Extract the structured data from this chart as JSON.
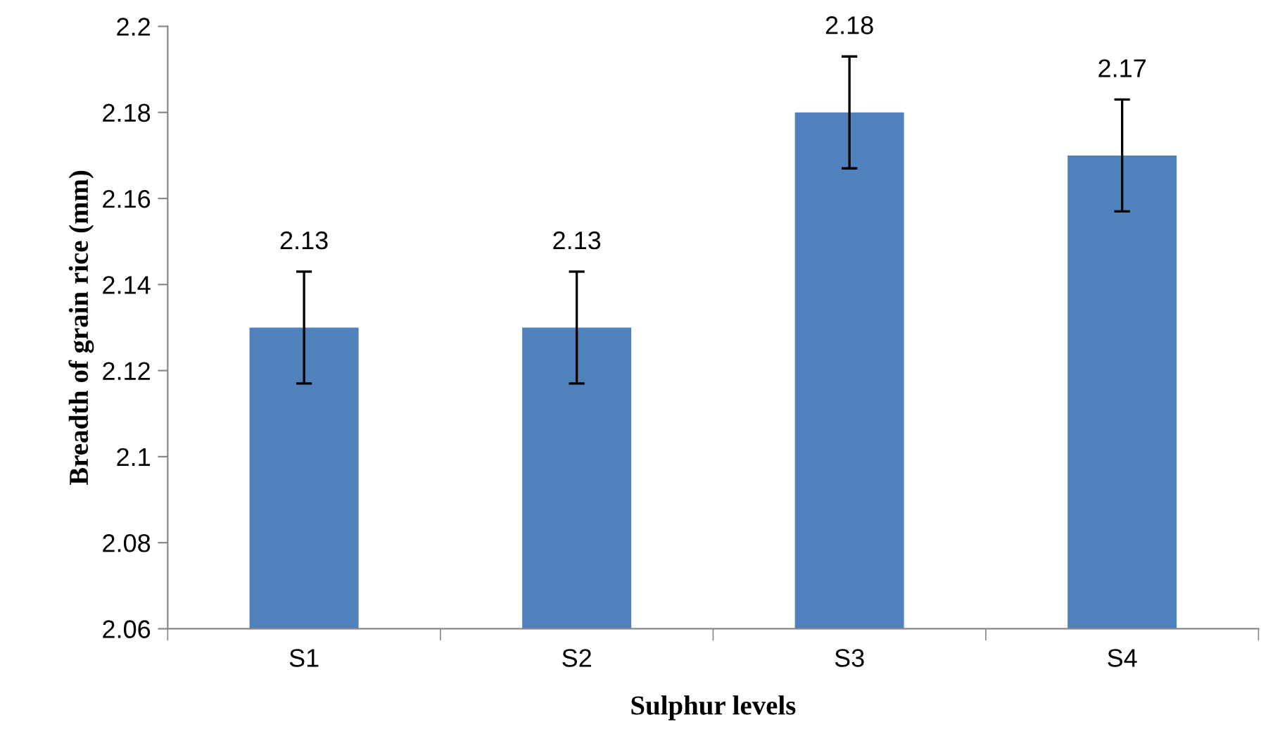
{
  "chart_data": {
    "type": "bar",
    "xlabel": "Sulphur levels",
    "ylabel": "Breadth of grain rice (mm)",
    "categories": [
      "S1",
      "S2",
      "S3",
      "S4"
    ],
    "values": [
      2.13,
      2.13,
      2.18,
      2.17
    ],
    "errors": [
      0.013,
      0.013,
      0.013,
      0.013
    ],
    "color": "#4f81bd",
    "ylim": [
      2.06,
      2.2
    ],
    "yticks": [
      2.06,
      2.08,
      2.1,
      2.12,
      2.14,
      2.16,
      2.18,
      2.2
    ],
    "data_labels": true,
    "grid": false,
    "legend": false
  }
}
